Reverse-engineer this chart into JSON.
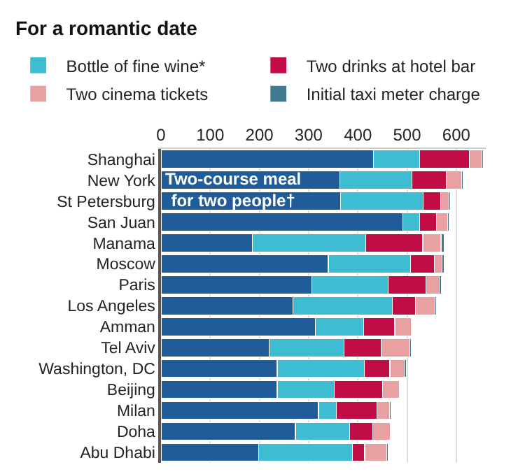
{
  "chart_data": {
    "type": "bar",
    "orientation": "horizontal",
    "stacked": true,
    "title": "For a romantic date",
    "categories": [
      "Shanghai",
      "New York",
      "St Petersburg",
      "San Juan",
      "Manama",
      "Moscow",
      "Paris",
      "Los Angeles",
      "Amman",
      "Tel Aviv",
      "Washington, DC",
      "Beijing",
      "Milan",
      "Doha",
      "Abu Dhabi"
    ],
    "series": [
      {
        "name": "Two-course meal for two people†",
        "color": "#1f5c99",
        "values": [
          432,
          363,
          365,
          491,
          186,
          340,
          306,
          268,
          314,
          220,
          236,
          236,
          320,
          273,
          198
        ]
      },
      {
        "name": "Bottle of fine wine*",
        "color": "#3ebcd2",
        "values": [
          94,
          147,
          168,
          35,
          230,
          167,
          155,
          202,
          98,
          152,
          177,
          116,
          36,
          110,
          191
        ]
      },
      {
        "name": "Two drinks at hotel bar",
        "color": "#c00d45",
        "values": [
          100,
          70,
          35,
          34,
          116,
          49,
          77,
          47,
          63,
          75,
          52,
          98,
          83,
          47,
          25
        ]
      },
      {
        "name": "Two cinema tickets",
        "color": "#e8a0a0",
        "values": [
          26,
          31,
          17,
          23,
          37,
          15,
          27,
          40,
          33,
          59,
          29,
          35,
          25,
          36,
          45
        ]
      },
      {
        "name": "Initial taxi meter charge",
        "color": "#3f7a91",
        "values": [
          3,
          3,
          4,
          3,
          7,
          4,
          5,
          3,
          2,
          3,
          4,
          2,
          3,
          2,
          3
        ]
      }
    ],
    "xlim": [
      0,
      660
    ],
    "xticks": [
      0,
      100,
      200,
      300,
      400,
      500,
      600
    ],
    "grid": "x",
    "legend": "top"
  }
}
